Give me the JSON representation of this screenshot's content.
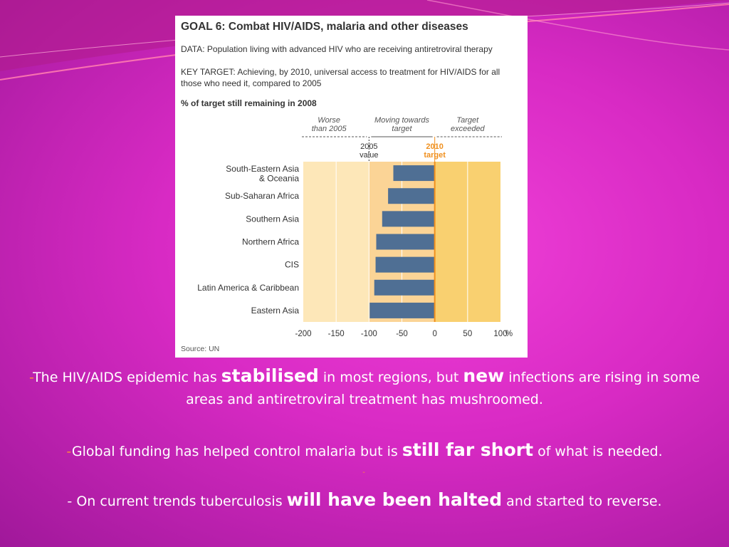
{
  "card": {
    "title": "GOAL 6: Combat HIV/AIDS, malaria and other diseases",
    "data_label": "DATA: Population living with advanced HIV who are receiving antiretroviral therapy",
    "target_label": "KEY TARGET: Achieving, by 2010, universal access to treatment for HIV/AIDS for all those who need it, compared to 2005",
    "subtitle": "% of target still remaining in 2008",
    "source": "Source: UN"
  },
  "chart_data": {
    "type": "bar",
    "orientation": "horizontal",
    "categories": [
      "South-Eastern Asia\n& Oceania",
      "Sub-Saharan Africa",
      "Southern Asia",
      "Northern Africa",
      "CIS",
      "Latin America & Caribbean",
      "Eastern Asia"
    ],
    "values": [
      -63,
      -71,
      -80,
      -89,
      -90,
      -92,
      -99
    ],
    "xlim": [
      -200,
      100
    ],
    "xticks": [
      "-200",
      "-150",
      "-100",
      "-50",
      "0",
      "50",
      "100"
    ],
    "xunit": "%",
    "zones": [
      {
        "label": "Worse\nthan 2005",
        "from": -200,
        "to": -100,
        "color": "#fde7b8"
      },
      {
        "label": "Moving towards\ntarget",
        "from": -100,
        "to": 0,
        "color": "#fbd496"
      },
      {
        "label": "Target\nexceeded",
        "from": 0,
        "to": 100,
        "color": "#f9d070"
      }
    ],
    "markers": [
      {
        "label": "2005\nvalue",
        "at": -100,
        "color": "#333333"
      },
      {
        "label": "2010\ntarget",
        "at": 0,
        "color": "#f0901e"
      }
    ],
    "bar_color": "#4f6f94",
    "grid": true
  },
  "bullets": {
    "b1": {
      "dash": "-",
      "pre": "The HIV/AIDS epidemic has ",
      "em1": "stabilised",
      "mid": " in most regions, but ",
      "em2": "new",
      "post": " infections are rising in some areas and antiretroviral treatment has mushroomed."
    },
    "b2": {
      "dash": "-",
      "pre": "Global funding has helped control malaria but is ",
      "em": "still far short",
      "post": " of what is needed."
    },
    "stray": "-",
    "b3": {
      "pre": "- On current trends tuberculosis ",
      "em": "will have been halted",
      "post": " and started to reverse."
    }
  },
  "colors": {
    "background": "#e030cc",
    "text": "#ffffff",
    "accent_dash": "#ff8a3a"
  }
}
